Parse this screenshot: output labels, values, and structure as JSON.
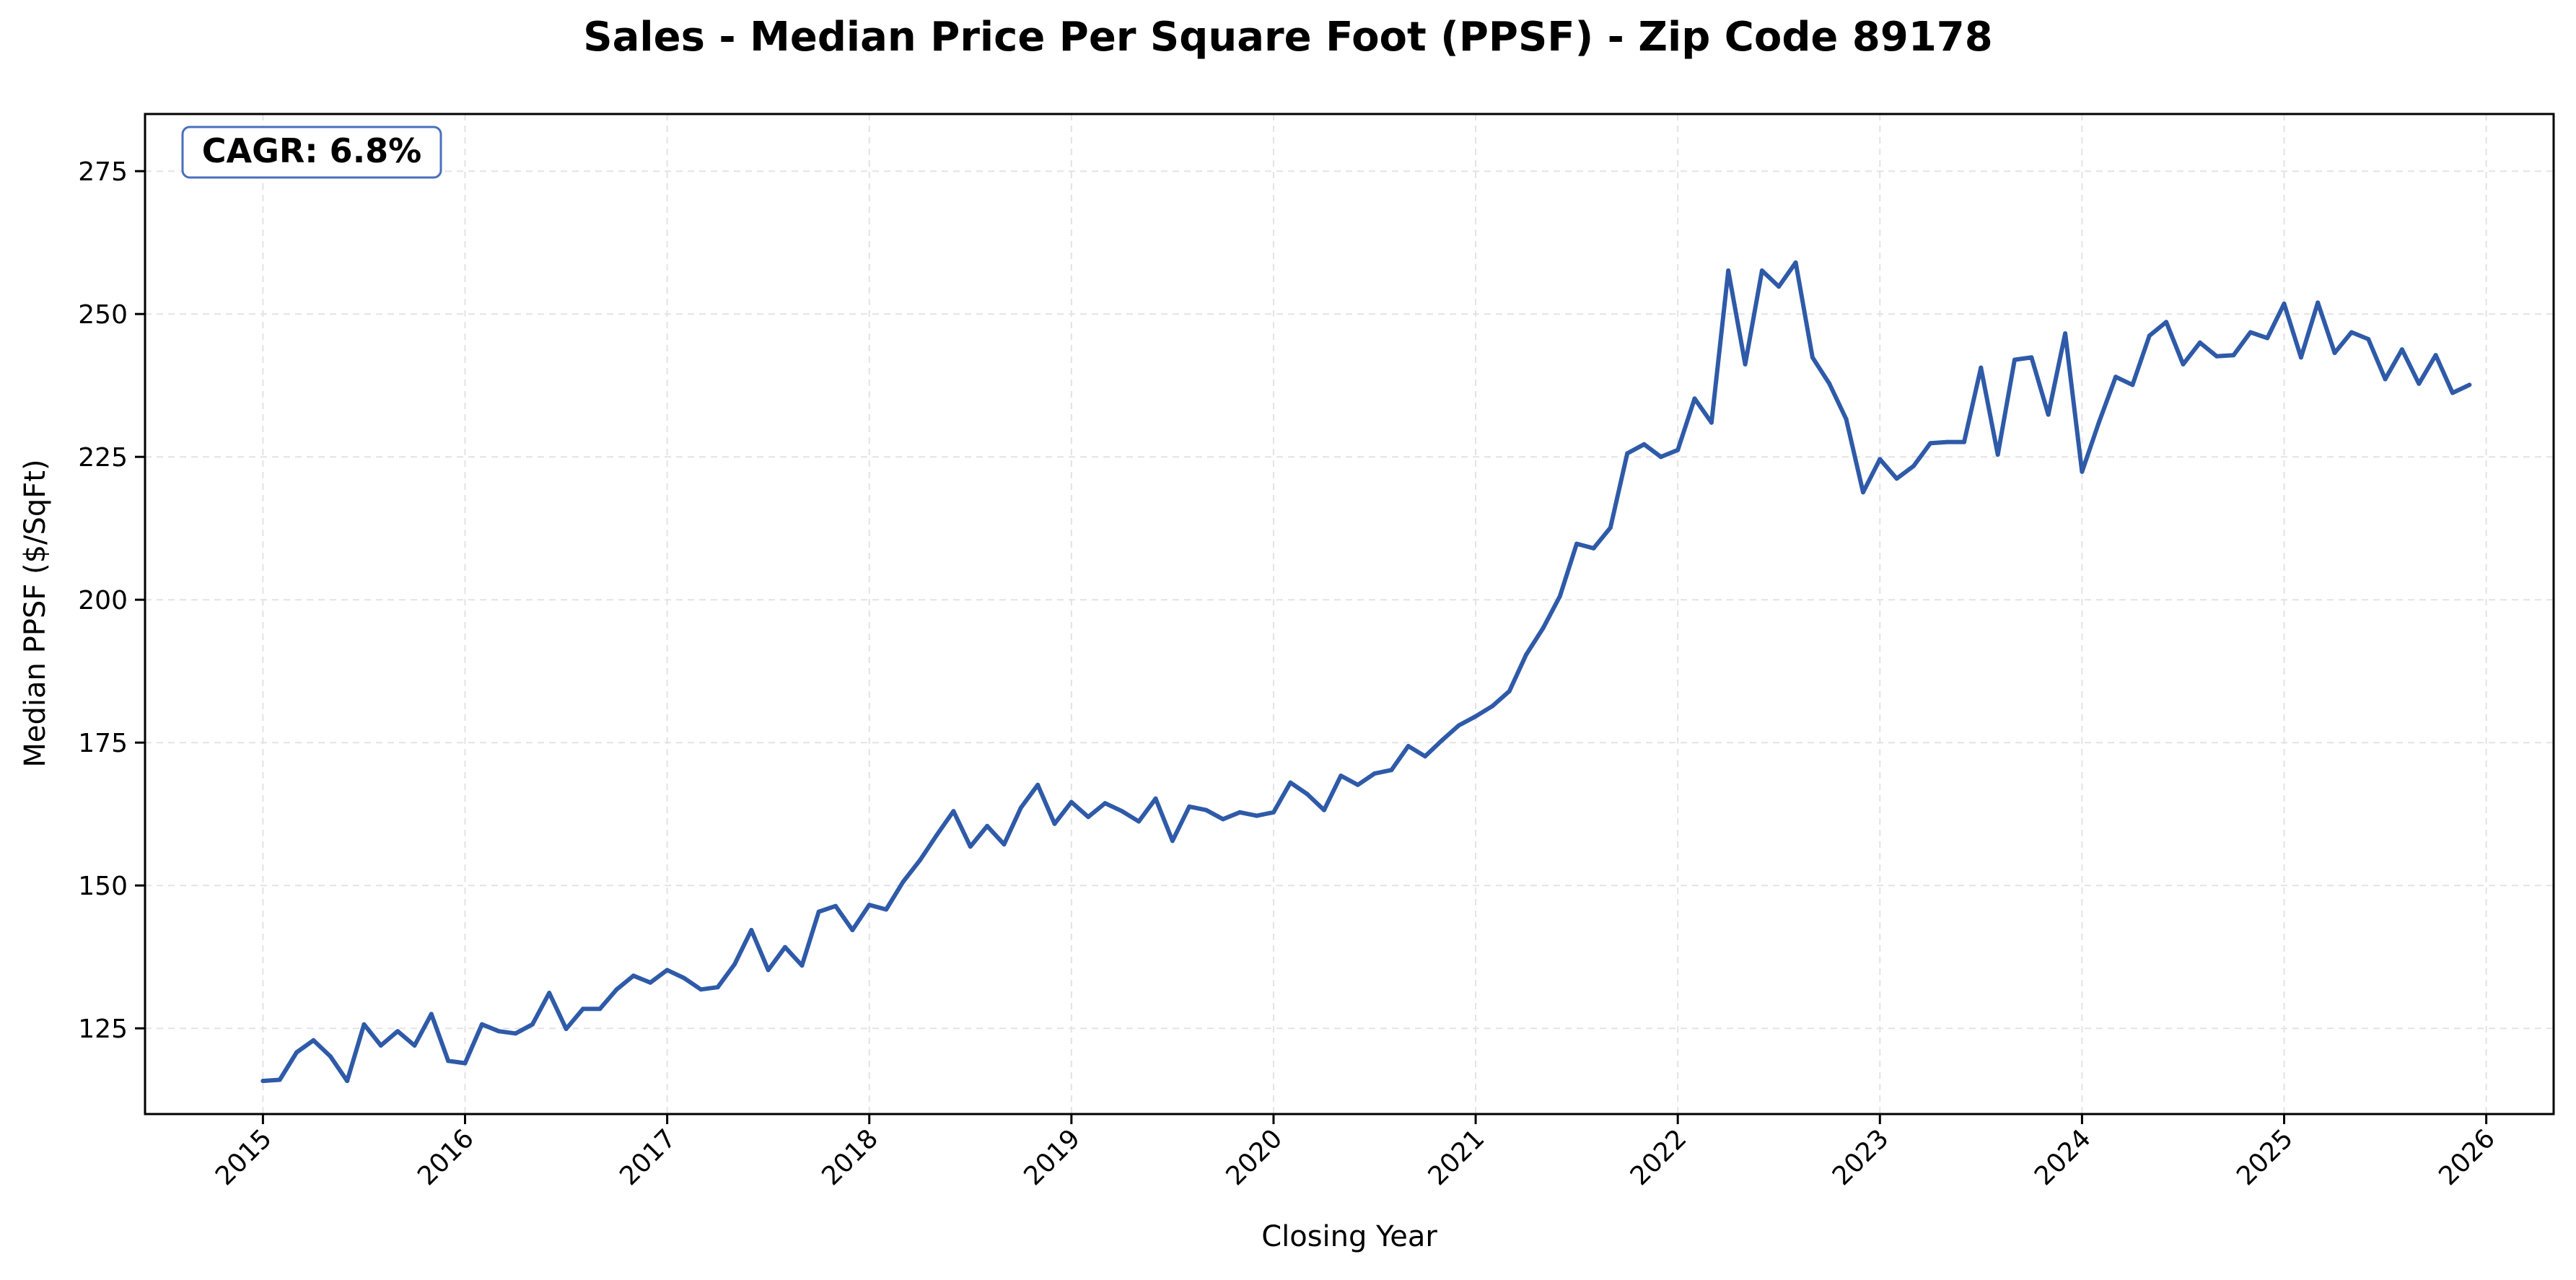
{
  "chart_data": {
    "type": "line",
    "title": "Sales - Median Price Per Square Foot (PPSF) - Zip Code 89178",
    "xlabel": "Closing Year",
    "ylabel": "Median PPSF ($/SqFt)",
    "annotation": "CAGR: 6.8%",
    "x_ticks": [
      "2015",
      "2016",
      "2017",
      "2018",
      "2019",
      "2020",
      "2021",
      "2022",
      "2023",
      "2024",
      "2025",
      "2026"
    ],
    "y_ticks": [
      "125",
      "150",
      "175",
      "200",
      "225",
      "250",
      "275"
    ],
    "xlim": [
      "2014-06",
      "2026-05"
    ],
    "ylim": [
      110,
      285
    ],
    "grid": true,
    "line_color": "#2e5aa8",
    "annotation_border_color": "#4a6fbe",
    "series": [
      {
        "x": [
          "2015-01",
          "2015-02",
          "2015-03",
          "2015-04",
          "2015-05",
          "2015-06",
          "2015-07",
          "2015-08",
          "2015-09",
          "2015-10",
          "2015-11",
          "2015-12",
          "2016-01",
          "2016-02",
          "2016-03",
          "2016-04",
          "2016-05",
          "2016-06",
          "2016-07",
          "2016-08",
          "2016-09",
          "2016-10",
          "2016-11",
          "2016-12",
          "2017-01",
          "2017-02",
          "2017-03",
          "2017-04",
          "2017-05",
          "2017-06",
          "2017-07",
          "2017-08",
          "2017-09",
          "2017-10",
          "2017-11",
          "2017-12",
          "2018-01",
          "2018-02",
          "2018-03",
          "2018-04",
          "2018-05",
          "2018-06",
          "2018-07",
          "2018-08",
          "2018-09",
          "2018-10",
          "2018-11",
          "2018-12",
          "2019-01",
          "2019-02",
          "2019-03",
          "2019-04",
          "2019-05",
          "2019-06",
          "2019-07",
          "2019-08",
          "2019-09",
          "2019-10",
          "2019-11",
          "2019-12",
          "2020-01",
          "2020-02",
          "2020-03",
          "2020-04",
          "2020-05",
          "2020-06",
          "2020-07",
          "2020-08",
          "2020-09",
          "2020-10",
          "2020-11",
          "2020-12",
          "2021-01",
          "2021-02",
          "2021-03",
          "2021-04",
          "2021-05",
          "2021-06",
          "2021-07",
          "2021-08",
          "2021-09",
          "2021-10",
          "2021-11",
          "2021-12",
          "2022-01",
          "2022-02",
          "2022-03",
          "2022-04",
          "2022-05",
          "2022-06",
          "2022-07",
          "2022-08",
          "2022-09",
          "2022-10",
          "2022-11",
          "2022-12",
          "2023-01",
          "2023-02",
          "2023-03",
          "2023-04",
          "2023-05",
          "2023-06",
          "2023-07",
          "2023-08",
          "2023-09",
          "2023-10",
          "2023-11",
          "2023-12",
          "2024-01",
          "2024-02",
          "2024-03",
          "2024-04",
          "2024-05",
          "2024-06",
          "2024-07",
          "2024-08",
          "2024-09",
          "2024-10",
          "2024-11",
          "2024-12",
          "2025-01",
          "2025-02",
          "2025-03",
          "2025-04",
          "2025-05",
          "2025-06",
          "2025-07",
          "2025-08",
          "2025-09",
          "2025-10",
          "2025-11",
          "2025-12"
        ],
        "values": [
          115.8,
          116.0,
          120.8,
          122.9,
          120.1,
          115.8,
          125.7,
          122.0,
          124.5,
          122.0,
          127.5,
          119.3,
          118.9,
          125.7,
          124.5,
          124.1,
          125.7,
          131.2,
          124.9,
          128.4,
          128.4,
          131.8,
          134.2,
          133.0,
          135.2,
          133.8,
          131.8,
          132.2,
          136.2,
          142.2,
          135.2,
          139.2,
          136.0,
          145.4,
          146.4,
          142.2,
          146.6,
          145.8,
          150.6,
          154.4,
          158.8,
          163.0,
          156.8,
          160.4,
          157.2,
          163.6,
          167.6,
          160.8,
          164.6,
          162.0,
          164.4,
          163.0,
          161.2,
          165.2,
          157.8,
          163.8,
          163.2,
          161.6,
          162.8,
          162.2,
          162.8,
          168.0,
          166.0,
          163.2,
          169.2,
          167.6,
          169.6,
          170.2,
          174.4,
          172.6,
          175.4,
          178.0,
          179.6,
          181.4,
          184.0,
          190.4,
          195.0,
          200.6,
          209.8,
          209.0,
          212.6,
          225.6,
          227.2,
          225.0,
          226.2,
          235.2,
          231.0,
          257.6,
          241.2,
          257.6,
          254.8,
          259.0,
          242.4,
          237.8,
          231.6,
          218.8,
          224.6,
          221.2,
          223.4,
          227.4,
          227.6,
          227.6,
          240.6,
          225.4,
          242.0,
          242.4,
          232.4,
          246.6,
          222.4,
          231.0,
          239.0,
          237.6,
          246.2,
          248.6,
          241.2,
          245.0,
          242.6,
          242.8,
          246.8,
          245.8,
          251.8,
          242.4,
          252.0,
          243.2,
          246.8,
          245.6,
          238.6,
          243.8,
          237.8,
          242.8,
          236.2,
          237.6
        ]
      }
    ]
  }
}
